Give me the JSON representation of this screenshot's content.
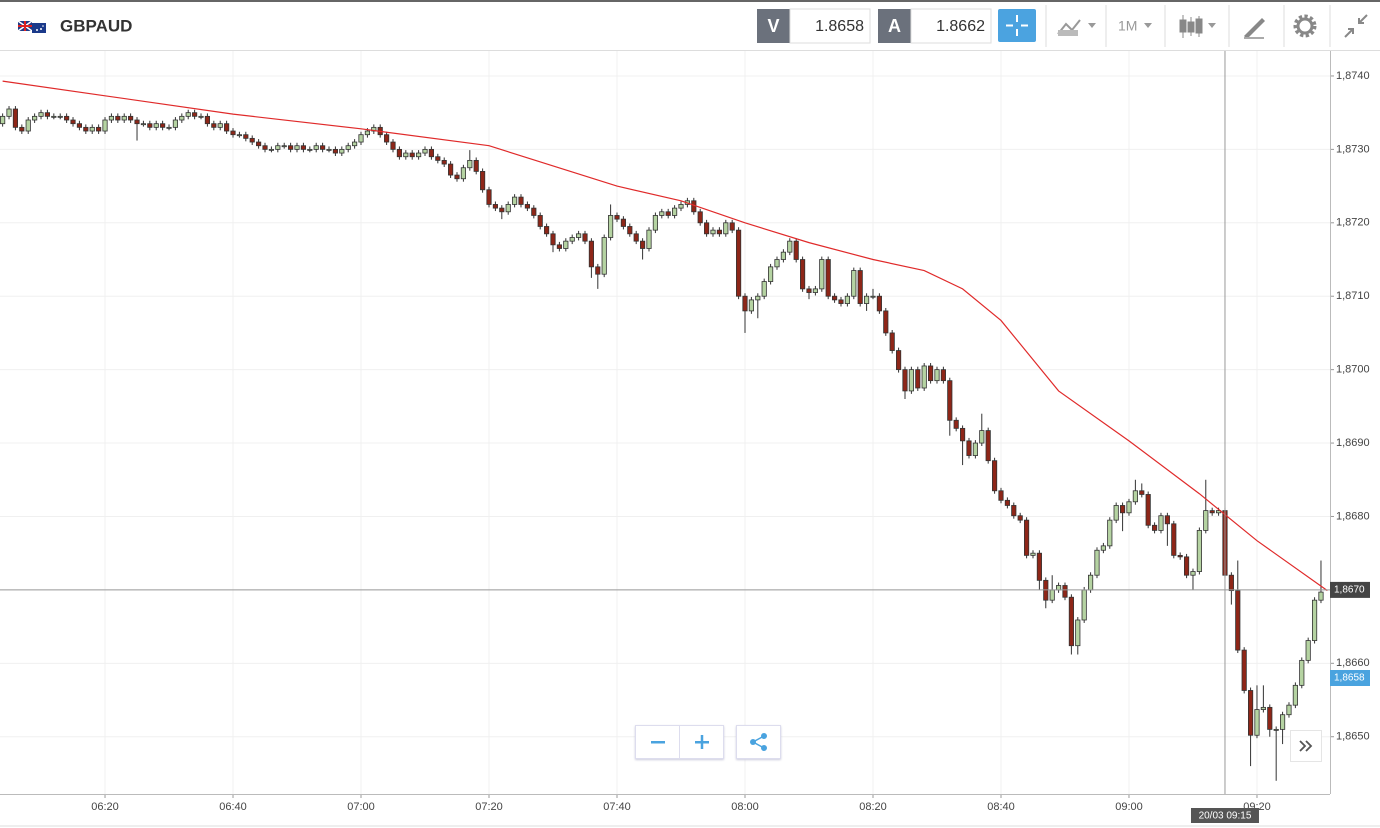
{
  "toolbar": {
    "symbol": "GBPAUD",
    "bid_label": "V",
    "bid": 1.8658,
    "ask_label": "A",
    "ask": 1.8662,
    "timeframe": "1M"
  },
  "chart_data": {
    "type": "candlestick",
    "up_color": "#b5d3a2",
    "down_color": "#8e2618",
    "xlim": [
      363.59,
      571.41
    ],
    "ylim": [
      1.86422,
      1.87434
    ],
    "xticks": [
      {
        "value": 380,
        "label": "06:20"
      },
      {
        "value": 400,
        "label": "06:40"
      },
      {
        "value": 420,
        "label": "07:00"
      },
      {
        "value": 440,
        "label": "07:20"
      },
      {
        "value": 460,
        "label": "07:40"
      },
      {
        "value": 480,
        "label": "08:00"
      },
      {
        "value": 500,
        "label": "08:20"
      },
      {
        "value": 520,
        "label": "08:40"
      },
      {
        "value": 540,
        "label": "09:00"
      },
      {
        "value": 560,
        "label": "09:20"
      }
    ],
    "yticks": [
      {
        "value": 1.874,
        "label": "1,8740"
      },
      {
        "value": 1.873,
        "label": "1,8730"
      },
      {
        "value": 1.872,
        "label": "1,8720"
      },
      {
        "value": 1.871,
        "label": "1,8710"
      },
      {
        "value": 1.87,
        "label": "1,8700"
      },
      {
        "value": 1.869,
        "label": "1,8690"
      },
      {
        "value": 1.868,
        "label": "1,8680"
      },
      {
        "value": 1.867,
        "label": "1,8670"
      },
      {
        "value": 1.866,
        "label": "1,8660"
      },
      {
        "value": 1.865,
        "label": "1,8650"
      }
    ],
    "grid": true,
    "x": [
      364,
      365,
      366,
      367,
      368,
      369,
      370,
      371,
      372,
      373,
      374,
      375,
      376,
      377,
      378,
      379,
      380,
      381,
      382,
      383,
      384,
      385,
      386,
      387,
      388,
      389,
      390,
      391,
      392,
      393,
      394,
      395,
      396,
      397,
      398,
      399,
      400,
      401,
      402,
      403,
      404,
      405,
      406,
      407,
      408,
      409,
      410,
      411,
      412,
      413,
      414,
      415,
      416,
      417,
      418,
      419,
      420,
      421,
      422,
      423,
      424,
      425,
      426,
      427,
      428,
      429,
      430,
      431,
      432,
      433,
      434,
      435,
      436,
      437,
      438,
      439,
      440,
      441,
      442,
      443,
      444,
      445,
      446,
      447,
      448,
      449,
      450,
      451,
      452,
      453,
      454,
      455,
      456,
      457,
      458,
      459,
      460,
      461,
      462,
      463,
      464,
      465,
      466,
      467,
      468,
      469,
      470,
      471,
      472,
      473,
      474,
      475,
      476,
      477,
      478,
      479,
      480,
      481,
      482,
      483,
      484,
      485,
      486,
      487,
      488,
      489,
      490,
      491,
      492,
      493,
      494,
      495,
      496,
      497,
      498,
      499,
      500,
      501,
      502,
      503,
      504,
      505,
      506,
      507,
      508,
      509,
      510,
      511,
      512,
      513,
      514,
      515,
      516,
      517,
      518,
      519,
      520,
      521,
      522,
      523,
      524,
      525,
      526,
      527,
      528,
      529,
      530,
      531,
      532,
      533,
      534,
      535,
      536,
      537,
      538,
      539,
      540,
      541,
      542,
      543,
      544,
      545,
      546,
      547,
      548,
      549,
      550,
      551,
      552,
      553,
      554,
      555,
      556,
      557,
      558,
      559,
      560,
      561,
      562,
      563,
      564,
      565,
      566,
      567,
      568,
      569,
      570
    ],
    "open": [
      1.87335,
      1.87345,
      1.87355,
      1.8733,
      1.87325,
      1.8734,
      1.87345,
      1.8735,
      1.87345,
      1.87345,
      1.87345,
      1.8734,
      1.87335,
      1.8733,
      1.87325,
      1.8733,
      1.87325,
      1.8734,
      1.87345,
      1.8734,
      1.87345,
      1.8734,
      1.87335,
      1.87335,
      1.8733,
      1.87335,
      1.8733,
      1.8733,
      1.8734,
      1.87345,
      1.8735,
      1.87345,
      1.87345,
      1.87335,
      1.8733,
      1.87335,
      1.87325,
      1.8732,
      1.8732,
      1.87315,
      1.8731,
      1.87305,
      1.873,
      1.873,
      1.87305,
      1.87305,
      1.873,
      1.87305,
      1.873,
      1.873,
      1.87305,
      1.873,
      1.873,
      1.87295,
      1.873,
      1.87305,
      1.8731,
      1.8732,
      1.87325,
      1.8733,
      1.8732,
      1.8731,
      1.873,
      1.8729,
      1.87295,
      1.8729,
      1.87295,
      1.873,
      1.8729,
      1.87285,
      1.8728,
      1.87265,
      1.8726,
      1.87275,
      1.87285,
      1.8727,
      1.87245,
      1.87225,
      1.8722,
      1.87215,
      1.87225,
      1.87235,
      1.87225,
      1.8722,
      1.8721,
      1.87195,
      1.87185,
      1.8717,
      1.87165,
      1.87175,
      1.8718,
      1.87185,
      1.87175,
      1.8714,
      1.8713,
      1.8718,
      1.8721,
      1.87205,
      1.87195,
      1.87185,
      1.87175,
      1.87165,
      1.8719,
      1.8721,
      1.87215,
      1.8721,
      1.8722,
      1.87225,
      1.8723,
      1.87215,
      1.872,
      1.87185,
      1.8719,
      1.87185,
      1.872,
      1.8719,
      1.871,
      1.8708,
      1.87095,
      1.871,
      1.8712,
      1.8714,
      1.8715,
      1.8716,
      1.87175,
      1.8715,
      1.8711,
      1.87105,
      1.8711,
      1.8715,
      1.871,
      1.87095,
      1.8709,
      1.871,
      1.87135,
      1.8709,
      1.871,
      1.871,
      1.8708,
      1.8705,
      1.87026,
      1.87,
      1.86971,
      1.87,
      1.86975,
      1.87005,
      1.86985,
      1.87,
      1.86985,
      1.86931,
      1.8692,
      1.86903,
      1.86883,
      1.869,
      1.86917,
      1.86876,
      1.86835,
      1.86822,
      1.86815,
      1.86801,
      1.86795,
      1.86747,
      1.8675,
      1.86713,
      1.86686,
      1.867,
      1.86706,
      1.8669,
      1.86624,
      1.86659,
      1.867,
      1.8672,
      1.86754,
      1.8676,
      1.86795,
      1.86815,
      1.86805,
      1.8682,
      1.86835,
      1.8683,
      1.86788,
      1.86781,
      1.86801,
      1.8679,
      1.86747,
      1.86745,
      1.8672,
      1.86725,
      1.86781,
      1.86808,
      1.86805,
      1.86808,
      1.8672,
      1.86699,
      1.86618,
      1.86563,
      1.86502,
      1.86537,
      1.8654,
      1.8651,
      1.8651,
      1.8653,
      1.86543,
      1.8657,
      1.86604,
      1.86631,
      1.86686
    ],
    "close": [
      1.87345,
      1.87355,
      1.8733,
      1.87325,
      1.8734,
      1.87345,
      1.8735,
      1.87345,
      1.87345,
      1.87345,
      1.8734,
      1.87335,
      1.8733,
      1.87325,
      1.8733,
      1.87325,
      1.8734,
      1.87345,
      1.8734,
      1.87345,
      1.8734,
      1.87335,
      1.87335,
      1.8733,
      1.87335,
      1.8733,
      1.8733,
      1.8734,
      1.87345,
      1.8735,
      1.87345,
      1.87345,
      1.87335,
      1.8733,
      1.87335,
      1.87325,
      1.8732,
      1.8732,
      1.87315,
      1.8731,
      1.87305,
      1.873,
      1.873,
      1.87305,
      1.87305,
      1.873,
      1.87305,
      1.873,
      1.873,
      1.87305,
      1.873,
      1.873,
      1.87295,
      1.873,
      1.87305,
      1.8731,
      1.8732,
      1.87325,
      1.8733,
      1.8732,
      1.8731,
      1.873,
      1.8729,
      1.87295,
      1.8729,
      1.87295,
      1.873,
      1.8729,
      1.87285,
      1.8728,
      1.87265,
      1.8726,
      1.87275,
      1.87285,
      1.8727,
      1.87245,
      1.87225,
      1.8722,
      1.87215,
      1.87225,
      1.87235,
      1.87225,
      1.8722,
      1.8721,
      1.87195,
      1.87185,
      1.8717,
      1.87165,
      1.87175,
      1.8718,
      1.87185,
      1.87175,
      1.8714,
      1.8713,
      1.8718,
      1.8721,
      1.87205,
      1.87195,
      1.87185,
      1.87175,
      1.87165,
      1.8719,
      1.8721,
      1.87215,
      1.8721,
      1.8722,
      1.87225,
      1.8723,
      1.87215,
      1.872,
      1.87185,
      1.8719,
      1.87185,
      1.872,
      1.8719,
      1.871,
      1.8708,
      1.87095,
      1.871,
      1.8712,
      1.8714,
      1.8715,
      1.8716,
      1.87175,
      1.8715,
      1.8711,
      1.87105,
      1.8711,
      1.8715,
      1.871,
      1.87095,
      1.8709,
      1.871,
      1.87135,
      1.8709,
      1.871,
      1.871,
      1.8708,
      1.8705,
      1.87026,
      1.87,
      1.86971,
      1.87,
      1.86975,
      1.87005,
      1.86985,
      1.87,
      1.86985,
      1.86931,
      1.8692,
      1.86903,
      1.86883,
      1.869,
      1.86917,
      1.86876,
      1.86835,
      1.86822,
      1.86815,
      1.86801,
      1.86795,
      1.86747,
      1.8675,
      1.86713,
      1.86686,
      1.867,
      1.86706,
      1.8669,
      1.86624,
      1.86659,
      1.867,
      1.8672,
      1.86754,
      1.8676,
      1.86795,
      1.86815,
      1.86805,
      1.8682,
      1.86835,
      1.8683,
      1.86788,
      1.86781,
      1.86801,
      1.8679,
      1.86747,
      1.86745,
      1.8672,
      1.86725,
      1.86781,
      1.86808,
      1.86805,
      1.86808,
      1.8672,
      1.86699,
      1.86618,
      1.86563,
      1.86502,
      1.86537,
      1.8654,
      1.8651,
      1.8651,
      1.8653,
      1.86543,
      1.8657,
      1.86604,
      1.86631,
      1.86686,
      1.86697
    ],
    "high": [
      1.87349,
      1.87359,
      1.87359,
      1.87334,
      1.87344,
      1.87349,
      1.87354,
      1.87354,
      1.87349,
      1.87349,
      1.87349,
      1.87344,
      1.87339,
      1.87334,
      1.87334,
      1.87334,
      1.87344,
      1.87349,
      1.87349,
      1.87349,
      1.87349,
      1.87344,
      1.87339,
      1.87339,
      1.87339,
      1.87339,
      1.87334,
      1.87344,
      1.87349,
      1.87354,
      1.87354,
      1.87349,
      1.87349,
      1.87339,
      1.87339,
      1.87339,
      1.87329,
      1.87324,
      1.87324,
      1.87319,
      1.87314,
      1.87309,
      1.87304,
      1.87309,
      1.87309,
      1.87309,
      1.87309,
      1.87309,
      1.87304,
      1.87309,
      1.87309,
      1.87304,
      1.87304,
      1.87304,
      1.87309,
      1.87314,
      1.87324,
      1.87329,
      1.87334,
      1.87334,
      1.87324,
      1.87314,
      1.87304,
      1.87299,
      1.87299,
      1.87299,
      1.87304,
      1.87304,
      1.87294,
      1.87289,
      1.87284,
      1.87269,
      1.87279,
      1.87299,
      1.87289,
      1.87274,
      1.87249,
      1.87229,
      1.87224,
      1.87229,
      1.87239,
      1.87239,
      1.87229,
      1.87224,
      1.87214,
      1.87199,
      1.87189,
      1.87174,
      1.87179,
      1.87184,
      1.87189,
      1.87189,
      1.87179,
      1.87144,
      1.87184,
      1.87225,
      1.87214,
      1.87209,
      1.87199,
      1.87189,
      1.87179,
      1.87194,
      1.87214,
      1.87219,
      1.87219,
      1.87224,
      1.87229,
      1.87234,
      1.87234,
      1.87219,
      1.87204,
      1.87194,
      1.87194,
      1.87204,
      1.87204,
      1.87194,
      1.87104,
      1.87099,
      1.87104,
      1.87124,
      1.87144,
      1.87154,
      1.87164,
      1.87179,
      1.87179,
      1.87154,
      1.87114,
      1.87114,
      1.87154,
      1.87154,
      1.87104,
      1.87099,
      1.87104,
      1.87139,
      1.87139,
      1.87104,
      1.8711,
      1.87104,
      1.87084,
      1.87054,
      1.8703,
      1.87004,
      1.87004,
      1.87004,
      1.87009,
      1.87009,
      1.87004,
      1.87004,
      1.86989,
      1.86935,
      1.86924,
      1.86907,
      1.86904,
      1.8694,
      1.86921,
      1.8688,
      1.86839,
      1.86826,
      1.86819,
      1.86805,
      1.86799,
      1.86754,
      1.86754,
      1.86717,
      1.8672,
      1.8671,
      1.8671,
      1.86694,
      1.86663,
      1.86704,
      1.86724,
      1.86758,
      1.86764,
      1.86799,
      1.86819,
      1.86819,
      1.86824,
      1.8685,
      1.86845,
      1.86834,
      1.86792,
      1.86805,
      1.86805,
      1.86794,
      1.86751,
      1.86749,
      1.86729,
      1.86785,
      1.8685,
      1.86812,
      1.86812,
      1.86812,
      1.86724,
      1.8674,
      1.86622,
      1.86567,
      1.8657,
      1.8657,
      1.86544,
      1.86514,
      1.86534,
      1.86547,
      1.86574,
      1.86608,
      1.86635,
      1.8669,
      1.8674
    ],
    "low": [
      1.87331,
      1.87341,
      1.87326,
      1.87321,
      1.87321,
      1.87336,
      1.87341,
      1.87341,
      1.87341,
      1.87341,
      1.87336,
      1.87331,
      1.87326,
      1.87321,
      1.87321,
      1.87321,
      1.87321,
      1.87336,
      1.87336,
      1.87336,
      1.87336,
      1.87312,
      1.87331,
      1.87326,
      1.87326,
      1.87326,
      1.87326,
      1.87326,
      1.87336,
      1.87341,
      1.87341,
      1.87341,
      1.87331,
      1.87326,
      1.87326,
      1.87321,
      1.87316,
      1.87316,
      1.87311,
      1.87306,
      1.87301,
      1.87296,
      1.87296,
      1.87296,
      1.87301,
      1.87296,
      1.87296,
      1.87296,
      1.87296,
      1.87296,
      1.87296,
      1.87296,
      1.87291,
      1.87291,
      1.87296,
      1.87301,
      1.87306,
      1.87316,
      1.87321,
      1.87316,
      1.87306,
      1.87296,
      1.87286,
      1.87286,
      1.87286,
      1.87286,
      1.87291,
      1.87286,
      1.87281,
      1.87276,
      1.87261,
      1.87256,
      1.87256,
      1.87271,
      1.87266,
      1.87241,
      1.87221,
      1.87216,
      1.87205,
      1.87211,
      1.87221,
      1.87221,
      1.87216,
      1.87206,
      1.87191,
      1.87181,
      1.8716,
      1.87161,
      1.87161,
      1.87171,
      1.87176,
      1.87171,
      1.87125,
      1.8711,
      1.87126,
      1.87176,
      1.87201,
      1.87191,
      1.87181,
      1.87171,
      1.8715,
      1.87161,
      1.87186,
      1.87206,
      1.87206,
      1.87206,
      1.87216,
      1.87221,
      1.87211,
      1.87196,
      1.87181,
      1.87181,
      1.87181,
      1.87181,
      1.87186,
      1.87096,
      1.8705,
      1.87076,
      1.8707,
      1.87096,
      1.87116,
      1.87136,
      1.87146,
      1.87156,
      1.87146,
      1.87106,
      1.87096,
      1.87101,
      1.87106,
      1.87096,
      1.87091,
      1.87086,
      1.87086,
      1.87096,
      1.87086,
      1.8708,
      1.87096,
      1.87076,
      1.87046,
      1.87022,
      1.86996,
      1.8696,
      1.86967,
      1.86971,
      1.86971,
      1.86981,
      1.86981,
      1.86981,
      1.8691,
      1.86916,
      1.8687,
      1.86879,
      1.86879,
      1.86896,
      1.86872,
      1.86831,
      1.86818,
      1.86811,
      1.86797,
      1.86791,
      1.86743,
      1.86743,
      1.867,
      1.86675,
      1.86682,
      1.86696,
      1.86686,
      1.86612,
      1.86612,
      1.86655,
      1.86696,
      1.86716,
      1.8675,
      1.86756,
      1.86791,
      1.8678,
      1.86801,
      1.86816,
      1.86826,
      1.86784,
      1.86777,
      1.86777,
      1.8676,
      1.86743,
      1.86741,
      1.86716,
      1.867,
      1.86721,
      1.86777,
      1.86801,
      1.86801,
      1.86716,
      1.8668,
      1.86614,
      1.86559,
      1.8646,
      1.86498,
      1.86533,
      1.865,
      1.8644,
      1.8649,
      1.86526,
      1.86539,
      1.86566,
      1.866,
      1.86627,
      1.86682
    ],
    "moving_average": {
      "color": "#e02a2a",
      "x": [
        364,
        380,
        400,
        420,
        440,
        460,
        470,
        480,
        490,
        500,
        508,
        514,
        520,
        529,
        540,
        551,
        560,
        571
      ],
      "values": [
        1.87393,
        1.87373,
        1.87348,
        1.87328,
        1.87305,
        1.8725,
        1.8723,
        1.872,
        1.87173,
        1.8715,
        1.87135,
        1.8711,
        1.87067,
        1.86971,
        1.86903,
        1.86831,
        1.86767,
        1.86699
      ]
    },
    "crosshair": {
      "x": 555,
      "x_label": "20/03 09:15",
      "y": 1.867,
      "y_label": "1,8670"
    },
    "last_price": {
      "value": 1.8658,
      "label": "1,8658"
    }
  }
}
